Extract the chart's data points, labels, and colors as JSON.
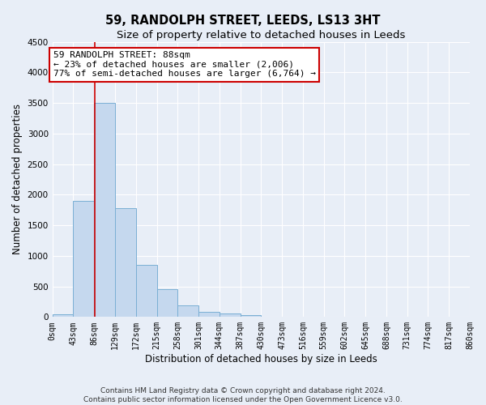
{
  "title": "59, RANDOLPH STREET, LEEDS, LS13 3HT",
  "subtitle": "Size of property relative to detached houses in Leeds",
  "xlabel": "Distribution of detached houses by size in Leeds",
  "ylabel": "Number of detached properties",
  "bar_values": [
    50,
    1900,
    3500,
    1780,
    850,
    460,
    185,
    90,
    55,
    30,
    0,
    0,
    0,
    0,
    0,
    0,
    0,
    0,
    0,
    0
  ],
  "bin_edges": [
    0,
    43,
    86,
    129,
    172,
    215,
    258,
    301,
    344,
    387,
    430,
    473,
    516,
    559,
    602,
    645,
    688,
    731,
    774,
    817,
    860
  ],
  "tick_labels": [
    "0sqm",
    "43sqm",
    "86sqm",
    "129sqm",
    "172sqm",
    "215sqm",
    "258sqm",
    "301sqm",
    "344sqm",
    "387sqm",
    "430sqm",
    "473sqm",
    "516sqm",
    "559sqm",
    "602sqm",
    "645sqm",
    "688sqm",
    "731sqm",
    "774sqm",
    "817sqm",
    "860sqm"
  ],
  "bar_color": "#c5d8ee",
  "bar_edge_color": "#7aafd4",
  "property_line_x": 88,
  "property_line_color": "#cc0000",
  "annotation_text": "59 RANDOLPH STREET: 88sqm\n← 23% of detached houses are smaller (2,006)\n77% of semi-detached houses are larger (6,764) →",
  "annotation_box_color": "#ffffff",
  "annotation_box_edge_color": "#cc0000",
  "ylim": [
    0,
    4500
  ],
  "yticks": [
    0,
    500,
    1000,
    1500,
    2000,
    2500,
    3000,
    3500,
    4000,
    4500
  ],
  "footer_line1": "Contains HM Land Registry data © Crown copyright and database right 2024.",
  "footer_line2": "Contains public sector information licensed under the Open Government Licence v3.0.",
  "background_color": "#e8eef7",
  "plot_bg_color": "#e8eef7",
  "grid_color": "#ffffff",
  "title_fontsize": 10.5,
  "subtitle_fontsize": 9.5,
  "axis_label_fontsize": 8.5,
  "tick_fontsize": 7,
  "annotation_fontsize": 8,
  "footer_fontsize": 6.5
}
